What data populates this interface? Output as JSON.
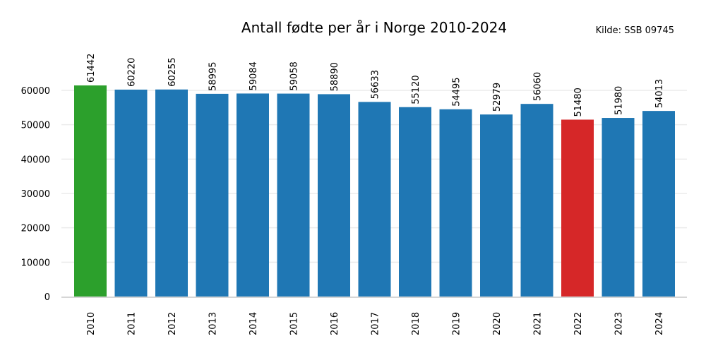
{
  "chart_data": {
    "type": "bar",
    "title": "Antall fødte per år i Norge 2010-2024",
    "source_note": "Kilde: SSB 09745",
    "xlabel": "",
    "ylabel": "",
    "categories": [
      "2010",
      "2011",
      "2012",
      "2013",
      "2014",
      "2015",
      "2016",
      "2017",
      "2018",
      "2019",
      "2020",
      "2021",
      "2022",
      "2023",
      "2024"
    ],
    "values": [
      61442,
      60220,
      60255,
      58995,
      59084,
      59058,
      58890,
      56633,
      55120,
      54495,
      52979,
      56060,
      51480,
      51980,
      54013
    ],
    "value_labels": [
      "61442",
      "60220",
      "60255",
      "58995",
      "59084",
      "59058",
      "58890",
      "56633",
      "55120",
      "54495",
      "52979",
      "56060",
      "51480",
      "51980",
      "54013"
    ],
    "ylim": [
      0,
      68000
    ],
    "yticks": [
      0,
      10000,
      20000,
      30000,
      40000,
      50000,
      60000
    ],
    "ytick_labels": [
      "0",
      "10000",
      "20000",
      "30000",
      "40000",
      "50000",
      "60000"
    ],
    "grid": true,
    "legend": "none",
    "colors": {
      "default": "#1f77b4",
      "highest": "#2ca02c",
      "lowest": "#d62728"
    },
    "bar_colors": [
      "#2ca02c",
      "#1f77b4",
      "#1f77b4",
      "#1f77b4",
      "#1f77b4",
      "#1f77b4",
      "#1f77b4",
      "#1f77b4",
      "#1f77b4",
      "#1f77b4",
      "#1f77b4",
      "#1f77b4",
      "#d62728",
      "#1f77b4",
      "#1f77b4"
    ]
  }
}
